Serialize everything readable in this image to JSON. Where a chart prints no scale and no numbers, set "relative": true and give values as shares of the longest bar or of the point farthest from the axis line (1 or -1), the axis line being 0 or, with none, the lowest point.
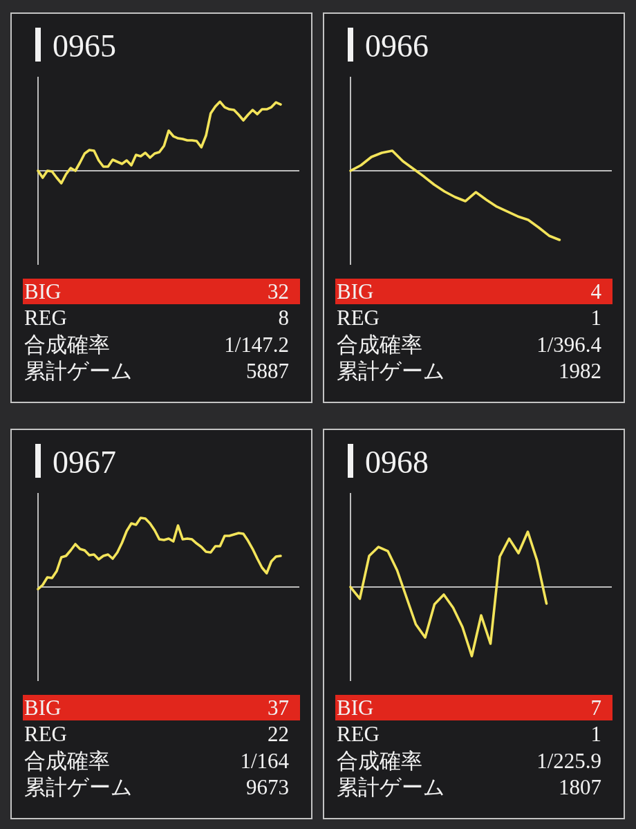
{
  "chart_data": [
    {
      "type": "line",
      "title": "0965",
      "relative": true,
      "categories": [
        null,
        null,
        null,
        null,
        null,
        null,
        null,
        null,
        null,
        null,
        null,
        null,
        null,
        null,
        null,
        null,
        null,
        null,
        null,
        null,
        null,
        null,
        null,
        null,
        null,
        null,
        null,
        null,
        null,
        null,
        null,
        null,
        null,
        null,
        null,
        null,
        null,
        null,
        null,
        null,
        null,
        null,
        null,
        null,
        null,
        null,
        null,
        null,
        null,
        null,
        null,
        null,
        null,
        null,
        null,
        null,
        null
      ],
      "series": [
        {
          "color": "#f3e45a",
          "values": [
            0,
            -0.1,
            0.0,
            -0.01,
            -0.1,
            -0.18,
            -0.05,
            0.04,
            0.0,
            0.12,
            0.25,
            0.3,
            0.29,
            0.15,
            0.06,
            0.06,
            0.16,
            0.13,
            0.1,
            0.15,
            0.08,
            0.23,
            0.21,
            0.26,
            0.19,
            0.25,
            0.27,
            0.36,
            0.58,
            0.5,
            0.47,
            0.46,
            0.44,
            0.44,
            0.43,
            0.34,
            0.51,
            0.83,
            0.93,
            1.0,
            0.92,
            0.89,
            0.88,
            0.81,
            0.73,
            0.81,
            0.88,
            0.82,
            0.89,
            0.89,
            0.92,
            0.99,
            0.96,
            null,
            null,
            null,
            null
          ]
        }
      ]
    },
    {
      "type": "other",
      "annotations": [
        "BIG",
        "32",
        "REG",
        "8",
        "合成確率",
        "1/147.2",
        "累計ゲーム",
        "5887"
      ]
    },
    {
      "type": "line",
      "title": "0966",
      "relative": true,
      "categories": [
        null,
        null,
        null,
        null,
        null,
        null,
        null,
        null,
        null,
        null,
        null,
        null,
        null,
        null,
        null,
        null,
        null,
        null,
        null,
        null,
        null,
        null,
        null,
        null,
        null,
        null
      ],
      "series": [
        {
          "color": "#f3e45a",
          "values": [
            0,
            0.08,
            0.2,
            0.26,
            0.29,
            0.14,
            0.03,
            -0.08,
            -0.2,
            -0.3,
            -0.38,
            -0.44,
            -0.31,
            -0.42,
            -0.52,
            -0.59,
            -0.66,
            -0.71,
            -0.82,
            -0.94,
            -1.0,
            null,
            null,
            null,
            null,
            null
          ]
        }
      ]
    },
    {
      "type": "other",
      "annotations": [
        "BIG",
        "4",
        "REG",
        "1",
        "合成確率",
        "1/396.4",
        "累計ゲーム",
        "1982"
      ]
    },
    {
      "type": "line",
      "title": "0967",
      "relative": true,
      "categories": [
        null,
        null,
        null,
        null,
        null,
        null,
        null,
        null,
        null,
        null,
        null,
        null,
        null,
        null,
        null,
        null,
        null,
        null,
        null,
        null,
        null,
        null,
        null,
        null,
        null,
        null,
        null,
        null,
        null,
        null,
        null,
        null,
        null,
        null,
        null,
        null,
        null,
        null,
        null,
        null,
        null,
        null,
        null,
        null,
        null,
        null,
        null,
        null,
        null,
        null,
        null,
        null,
        null,
        null,
        null,
        null,
        null
      ],
      "series": [
        {
          "color": "#f3e45a",
          "values": [
            -0.03,
            0.03,
            0.14,
            0.13,
            0.23,
            0.43,
            0.45,
            0.53,
            0.62,
            0.55,
            0.53,
            0.46,
            0.47,
            0.4,
            0.45,
            0.47,
            0.41,
            0.5,
            0.64,
            0.81,
            0.92,
            0.9,
            1.0,
            0.99,
            0.92,
            0.82,
            0.69,
            0.68,
            0.7,
            0.66,
            0.89,
            0.69,
            0.7,
            0.69,
            0.63,
            0.58,
            0.51,
            0.5,
            0.59,
            0.59,
            0.74,
            0.74,
            0.76,
            0.78,
            0.77,
            0.67,
            0.55,
            0.41,
            0.28,
            0.2,
            0.37,
            0.44,
            0.45,
            null,
            null,
            null,
            null
          ]
        }
      ]
    },
    {
      "type": "other",
      "annotations": [
        "BIG",
        "37",
        "REG",
        "22",
        "合成確率",
        "1/164",
        "累計ゲーム",
        "9673"
      ]
    },
    {
      "type": "line",
      "title": "0968",
      "relative": true,
      "categories": [
        null,
        null,
        null,
        null,
        null,
        null,
        null,
        null,
        null,
        null,
        null,
        null,
        null,
        null,
        null,
        null,
        null,
        null,
        null,
        null,
        null,
        null,
        null,
        null,
        null,
        null,
        null,
        null,
        null
      ],
      "series": [
        {
          "color": "#f3e45a",
          "values": [
            0,
            -0.17,
            0.45,
            0.58,
            0.52,
            0.24,
            -0.15,
            -0.54,
            -0.73,
            -0.25,
            -0.11,
            -0.3,
            -0.58,
            -1.0,
            -0.41,
            -0.82,
            0.44,
            0.7,
            0.49,
            0.8,
            0.38,
            -0.24,
            null,
            null,
            null,
            null,
            null,
            null,
            null
          ]
        }
      ]
    },
    {
      "type": "other",
      "annotations": [
        "BIG",
        "7",
        "REG",
        "1",
        "合成確率",
        "1/225.9",
        "累計ゲーム",
        "1807"
      ]
    }
  ]
}
